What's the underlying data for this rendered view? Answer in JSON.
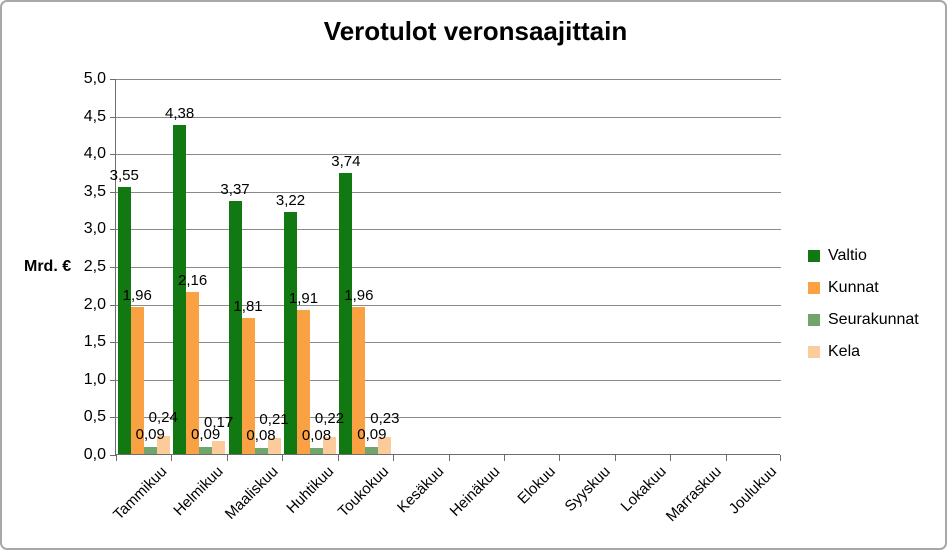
{
  "chart_data": {
    "type": "bar",
    "title": "Verotulot veronsaajittain",
    "ylabel": "Mrd. €",
    "xlabel": "",
    "ylim": [
      0,
      5
    ],
    "ytick_step": 0.5,
    "ytick_labels": [
      "5,0",
      "4,5",
      "4,0",
      "3,5",
      "3,0",
      "2,5",
      "2,0",
      "1,5",
      "1,0",
      "0,5",
      "0,0"
    ],
    "grid": true,
    "legend_position": "right",
    "categories": [
      "Tammikuu",
      "Helmikuu",
      "Maaliskuu",
      "Huhtikuu",
      "Toukokuu",
      "Kesäkuu",
      "Heinäkuu",
      "Elokuu",
      "Syyskuu",
      "Lokakuu",
      "Marraskuu",
      "Joulukuu"
    ],
    "series": [
      {
        "name": "Valtio",
        "color": "#127812",
        "values": [
          3.55,
          4.38,
          3.37,
          3.22,
          3.74,
          null,
          null,
          null,
          null,
          null,
          null,
          null
        ],
        "labels": [
          "3,55",
          "4,38",
          "3,37",
          "3,22",
          "3,74",
          "",
          "",
          "",
          "",
          "",
          "",
          ""
        ]
      },
      {
        "name": "Kunnat",
        "color": "#FAA243",
        "values": [
          1.96,
          2.16,
          1.81,
          1.91,
          1.96,
          null,
          null,
          null,
          null,
          null,
          null,
          null
        ],
        "labels": [
          "1,96",
          "2,16",
          "1,81",
          "1,91",
          "1,96",
          "",
          "",
          "",
          "",
          "",
          "",
          ""
        ]
      },
      {
        "name": "Seurakunnat",
        "color": "#6EA66E",
        "values": [
          0.09,
          0.09,
          0.08,
          0.08,
          0.09,
          null,
          null,
          null,
          null,
          null,
          null,
          null
        ],
        "labels": [
          "0,09",
          "0,09",
          "0,08",
          "0,08",
          "0,09",
          "",
          "",
          "",
          "",
          "",
          "",
          ""
        ]
      },
      {
        "name": "Kela",
        "color": "#FCCB9B",
        "values": [
          0.24,
          0.17,
          0.21,
          0.22,
          0.23,
          null,
          null,
          null,
          null,
          null,
          null,
          null
        ],
        "labels": [
          "0,24",
          "0,17",
          "0,21",
          "0,22",
          "0,23",
          "",
          "",
          "",
          "",
          "",
          "",
          ""
        ]
      }
    ]
  },
  "colors": {
    "grid": "#8a8a8a",
    "axis": "#6d6d6d",
    "chart_border": "#a8a8a8",
    "background": "#ffffff"
  }
}
